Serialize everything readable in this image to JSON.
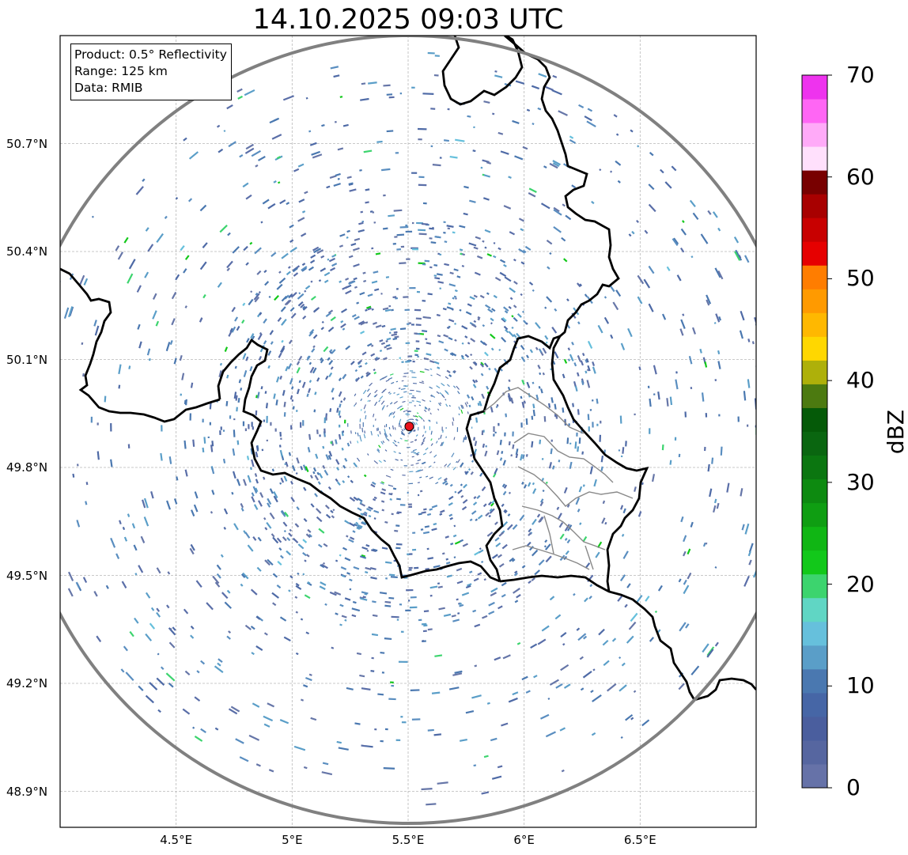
{
  "title": "14.10.2025 09:03 UTC",
  "info_box": {
    "product": "Product: 0.5° Reflectivity",
    "range": "Range: 125 km",
    "data": "Data: RMIB"
  },
  "map": {
    "lon_range": [
      4.0,
      7.0
    ],
    "lat_range": [
      48.8,
      51.0
    ],
    "radar_site": {
      "lon": 5.505,
      "lat": 49.914,
      "color": "#e8131b"
    },
    "range_km": 125,
    "range_ring_color": "#808080",
    "grid": true
  },
  "axes": {
    "lat_ticks": [
      {
        "value": 50.7,
        "label": "50.7°N"
      },
      {
        "value": 50.4,
        "label": "50.4°N"
      },
      {
        "value": 50.1,
        "label": "50.1°N"
      },
      {
        "value": 49.8,
        "label": "49.8°N"
      },
      {
        "value": 49.5,
        "label": "49.5°N"
      },
      {
        "value": 49.2,
        "label": "49.2°N"
      },
      {
        "value": 48.9,
        "label": "48.9°N"
      }
    ],
    "lon_ticks": [
      {
        "value": 4.5,
        "label": "4.5°E"
      },
      {
        "value": 5.0,
        "label": "5°E"
      },
      {
        "value": 5.5,
        "label": "5.5°E"
      },
      {
        "value": 6.0,
        "label": "6°E"
      },
      {
        "value": 6.5,
        "label": "6.5°E"
      }
    ]
  },
  "colorbar": {
    "title": "dBZ",
    "min": 0,
    "max": 70,
    "ticks": [
      {
        "value": 0,
        "label": "0"
      },
      {
        "value": 10,
        "label": "10"
      },
      {
        "value": 20,
        "label": "20"
      },
      {
        "value": 30,
        "label": "30"
      },
      {
        "value": 40,
        "label": "40"
      },
      {
        "value": 50,
        "label": "50"
      },
      {
        "value": 60,
        "label": "60"
      },
      {
        "value": 70,
        "label": "70"
      }
    ],
    "colors": [
      "#6672a8",
      "#5666a0",
      "#4a5e9e",
      "#4666a6",
      "#4a78b0",
      "#5a9ec8",
      "#66c0dc",
      "#60d6c4",
      "#3cd46e",
      "#12c81a",
      "#10b614",
      "#0f9e12",
      "#0d8a10",
      "#0b7610",
      "#0a6610",
      "#055a08",
      "#4c7a10",
      "#aeb00a",
      "#ffd700",
      "#ffb800",
      "#ff9a00",
      "#ff7d00",
      "#e60000",
      "#c80000",
      "#a80000",
      "#780000",
      "#ffe0fc",
      "#ffaaf8",
      "#ff66f4",
      "#ee33ee"
    ]
  }
}
